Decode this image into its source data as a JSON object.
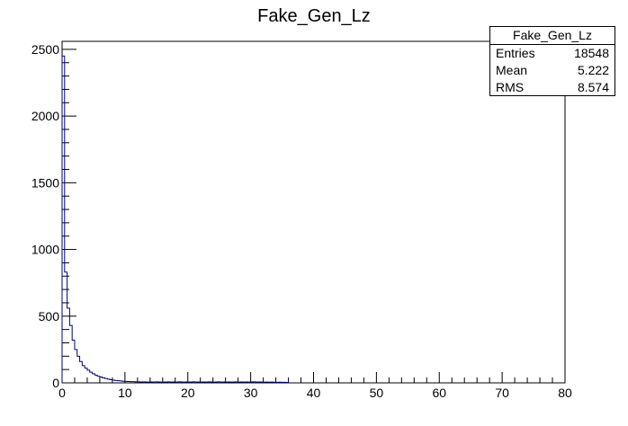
{
  "chart_data": {
    "type": "histogram",
    "title": "Fake_Gen_Lz",
    "xlabel": "",
    "ylabel": "",
    "xlim": [
      0,
      80
    ],
    "ylim": [
      0,
      2560
    ],
    "x_ticks": [
      "0",
      "10",
      "20",
      "30",
      "40",
      "50",
      "60",
      "70",
      "80"
    ],
    "y_ticks": [
      "0",
      "500",
      "1000",
      "1500",
      "2000",
      "2500"
    ],
    "bin_width": 0.4,
    "line_color": "#000080",
    "counts": [
      2450,
      830,
      560,
      430,
      320,
      250,
      200,
      160,
      130,
      110,
      95,
      80,
      68,
      58,
      50,
      44,
      38,
      33,
      28,
      24,
      20,
      18,
      16,
      14,
      12,
      11,
      10,
      9,
      9,
      8,
      8,
      7,
      8,
      7,
      6,
      7,
      6,
      8,
      7,
      6,
      6,
      7,
      8,
      6,
      7,
      6,
      8,
      7,
      6,
      7,
      6,
      7,
      8,
      6,
      7,
      6,
      7,
      6,
      8,
      7,
      6,
      7,
      8,
      6,
      7,
      6,
      7,
      6,
      7,
      8,
      6,
      7,
      6,
      7,
      6,
      7,
      8,
      6,
      7,
      6,
      5,
      6,
      5,
      6,
      5,
      4,
      5,
      4,
      4,
      3
    ],
    "stats": {
      "name": "Fake_Gen_Lz",
      "rows": [
        {
          "label": "Entries",
          "value": "18548"
        },
        {
          "label": "Mean",
          "value": "5.222"
        },
        {
          "label": "RMS",
          "value": "8.574"
        }
      ]
    }
  }
}
